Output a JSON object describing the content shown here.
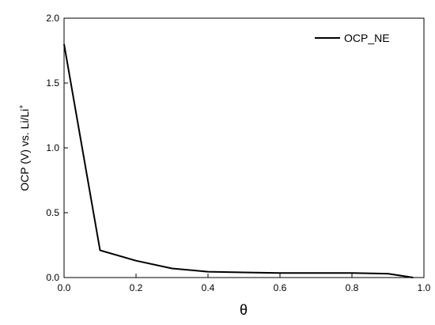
{
  "chart_data": {
    "type": "line",
    "xlabel": "θ",
    "ylabel": "OCP (V) vs. Li/Li",
    "ylabel_superscript": "+",
    "x": [
      0,
      0.1,
      0.2,
      0.3,
      0.4,
      0.5,
      0.6,
      0.7,
      0.8,
      0.9,
      0.97
    ],
    "series": [
      {
        "name": "OCP_NE",
        "color": "#000000",
        "values": [
          1.8,
          0.21,
          0.13,
          0.07,
          0.045,
          0.04,
          0.035,
          0.035,
          0.035,
          0.03,
          0.0
        ]
      }
    ],
    "xlim": [
      0,
      1
    ],
    "ylim": [
      0,
      2
    ],
    "xticks": [
      {
        "value": 0,
        "label": "0.0"
      },
      0.2,
      0.4,
      0.6,
      0.8,
      {
        "value": 1,
        "label": "1.0"
      }
    ],
    "yticks": [
      {
        "value": 0,
        "label": "0.0"
      },
      0.5,
      {
        "value": 1,
        "label": "1.0"
      },
      1.5,
      {
        "value": 2,
        "label": "2.0"
      }
    ],
    "grid": false,
    "legend": "top-right"
  }
}
